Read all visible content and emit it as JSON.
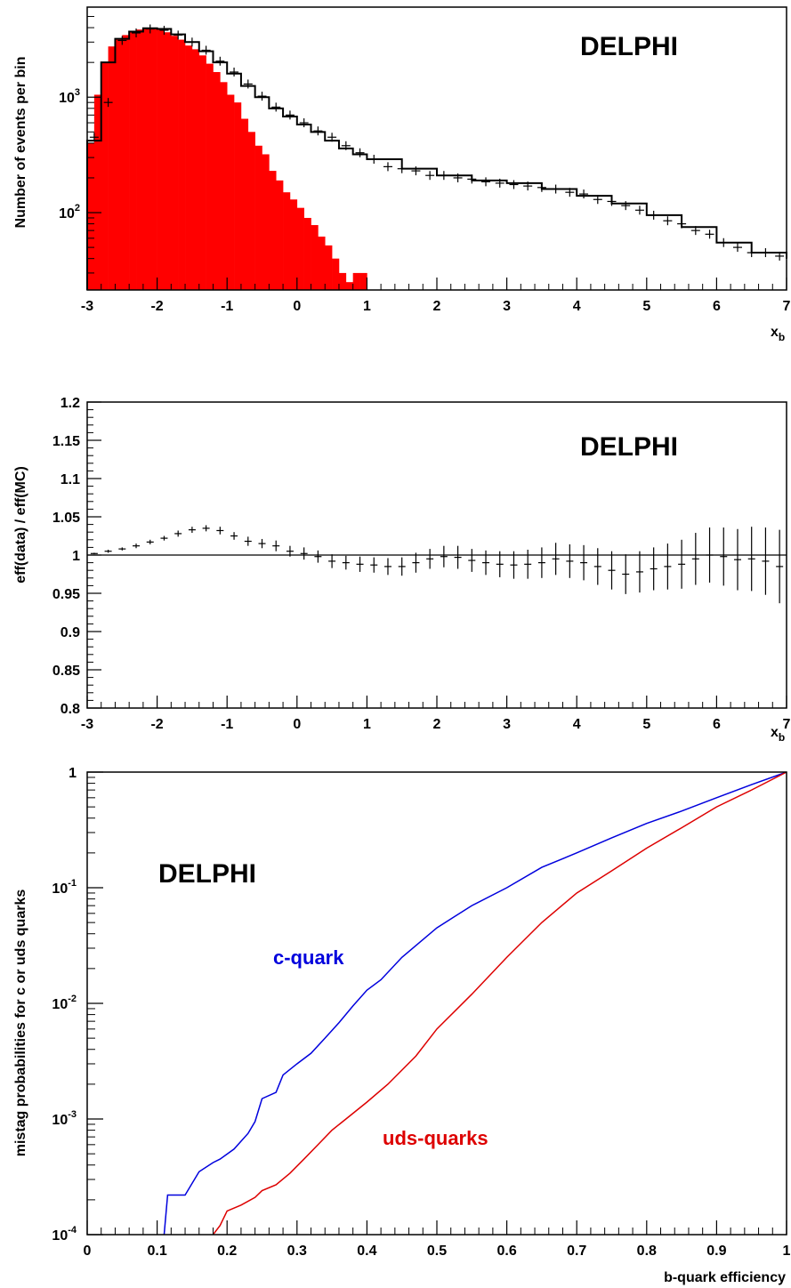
{
  "chart_data": [
    {
      "type": "histogram",
      "ylabel": "Number of events per bin",
      "xlabel": "x",
      "xlabel_sub": "b",
      "annotation": "DELPHI",
      "xlim": [
        -3,
        7
      ],
      "ylim_log10": [
        1.33,
        3.78
      ],
      "log_y": true,
      "x_ticks": [
        "-3",
        "-2",
        "-1",
        "0",
        "1",
        "2",
        "3",
        "4",
        "5",
        "6",
        "7"
      ],
      "y_ticks": [
        {
          "value": 1000,
          "base": "10",
          "exp": "3"
        },
        {
          "value": 100,
          "base": "10",
          "exp": "2"
        }
      ],
      "series": [
        {
          "style": "filled-histogram",
          "color": "#ff0000",
          "x": [
            -3.0,
            -2.9,
            -2.8,
            -2.7,
            -2.6,
            -2.5,
            -2.4,
            -2.3,
            -2.2,
            -2.1,
            -2.0,
            -1.9,
            -1.8,
            -1.7,
            -1.6,
            -1.5,
            -1.4,
            -1.3,
            -1.2,
            -1.1,
            -1.0,
            -0.9,
            -0.8,
            -0.7,
            -0.6,
            -0.5,
            -0.4,
            -0.3,
            -0.2,
            -0.1,
            0.0,
            0.1,
            0.2,
            0.3,
            0.4,
            0.5,
            0.6,
            0.7,
            0.8,
            0.9
          ],
          "values": [
            400,
            1050,
            2000,
            2750,
            3150,
            3450,
            3650,
            3850,
            3950,
            3950,
            3850,
            3650,
            3400,
            3150,
            2800,
            2600,
            2300,
            1950,
            1650,
            1350,
            1050,
            900,
            650,
            500,
            380,
            320,
            230,
            190,
            150,
            130,
            110,
            90,
            78,
            62,
            52,
            40,
            30,
            25,
            30,
            30
          ]
        },
        {
          "style": "step-histogram",
          "color": "#000000",
          "x": [
            -3.0,
            -2.8,
            -2.6,
            -2.4,
            -2.2,
            -2.0,
            -1.8,
            -1.6,
            -1.4,
            -1.2,
            -1.0,
            -0.8,
            -0.6,
            -0.4,
            -0.2,
            0.0,
            0.2,
            0.4,
            0.6,
            0.8,
            1.0,
            1.5,
            2.0,
            2.5,
            3.0,
            3.5,
            4.0,
            4.5,
            5.0,
            5.5,
            6.0,
            6.5,
            7.0
          ],
          "values": [
            420,
            2000,
            3200,
            3700,
            3950,
            3900,
            3500,
            3000,
            2500,
            2000,
            1600,
            1250,
            1000,
            800,
            680,
            580,
            500,
            420,
            360,
            320,
            290,
            240,
            210,
            190,
            180,
            160,
            140,
            120,
            95,
            75,
            55,
            45,
            40
          ]
        },
        {
          "style": "data-points",
          "color": "#000000",
          "x": [
            -3.0,
            -2.8,
            -2.6,
            -2.4,
            -2.2,
            -2.0,
            -1.8,
            -1.6,
            -1.4,
            -1.2,
            -1.0,
            -0.8,
            -0.6,
            -0.4,
            -0.2,
            0.0,
            0.2,
            0.4,
            0.6,
            0.8,
            1.0,
            1.2,
            1.4,
            1.6,
            1.8,
            2.0,
            2.2,
            2.4,
            2.6,
            2.8,
            3.0,
            3.2,
            3.4,
            3.6,
            3.8,
            4.0,
            4.2,
            4.4,
            4.6,
            4.8,
            5.0,
            5.2,
            5.4,
            5.6,
            5.8,
            6.0,
            6.2,
            6.4,
            6.6,
            6.8
          ],
          "values": [
            450,
            900,
            3100,
            3600,
            3900,
            3800,
            3450,
            3000,
            2550,
            2050,
            1650,
            1300,
            1020,
            820,
            700,
            600,
            510,
            450,
            380,
            330,
            290,
            250,
            240,
            230,
            210,
            210,
            200,
            195,
            185,
            180,
            175,
            170,
            165,
            160,
            150,
            145,
            130,
            125,
            115,
            105,
            95,
            85,
            80,
            70,
            65,
            55,
            50,
            45,
            45,
            42
          ]
        }
      ]
    },
    {
      "type": "scatter-errorbar",
      "ylabel": "eff(data) / eff(MC)",
      "xlabel": "x",
      "xlabel_sub": "b",
      "annotation": "DELPHI",
      "xlim": [
        -3,
        7
      ],
      "ylim": [
        0.8,
        1.2
      ],
      "x_ticks": [
        "-3",
        "-2",
        "-1",
        "0",
        "1",
        "2",
        "3",
        "4",
        "5",
        "6",
        "7"
      ],
      "y_ticks": [
        "0.8",
        "0.85",
        "0.9",
        "0.95",
        "1",
        "1.05",
        "1.1",
        "1.15",
        "1.2"
      ],
      "reference_line": 1.0,
      "series": [
        {
          "style": "points-with-errors",
          "color": "#000000",
          "x": [
            -2.9,
            -2.7,
            -2.5,
            -2.3,
            -2.1,
            -1.9,
            -1.7,
            -1.5,
            -1.3,
            -1.1,
            -0.9,
            -0.7,
            -0.5,
            -0.3,
            -0.1,
            0.1,
            0.3,
            0.5,
            0.7,
            0.9,
            1.1,
            1.3,
            1.5,
            1.7,
            1.9,
            2.1,
            2.3,
            2.5,
            2.7,
            2.9,
            3.1,
            3.3,
            3.5,
            3.7,
            3.9,
            4.1,
            4.3,
            4.5,
            4.7,
            4.9,
            5.1,
            5.3,
            5.5,
            5.7,
            5.9,
            6.1,
            6.3,
            6.5,
            6.7,
            6.9
          ],
          "values": [
            1.002,
            1.005,
            1.008,
            1.012,
            1.017,
            1.022,
            1.028,
            1.033,
            1.035,
            1.032,
            1.025,
            1.018,
            1.015,
            1.012,
            1.005,
            1.002,
            0.998,
            0.992,
            0.99,
            0.988,
            0.987,
            0.985,
            0.985,
            0.99,
            0.995,
            0.998,
            0.997,
            0.993,
            0.99,
            0.988,
            0.987,
            0.988,
            0.99,
            0.995,
            0.992,
            0.99,
            0.985,
            0.98,
            0.975,
            0.978,
            0.982,
            0.985,
            0.988,
            0.995,
            1.0,
            0.998,
            0.994,
            0.995,
            0.992,
            0.985
          ],
          "errors": [
            0.001,
            0.002,
            0.002,
            0.003,
            0.003,
            0.003,
            0.004,
            0.004,
            0.004,
            0.005,
            0.005,
            0.006,
            0.006,
            0.007,
            0.007,
            0.008,
            0.008,
            0.009,
            0.009,
            0.01,
            0.01,
            0.011,
            0.012,
            0.013,
            0.013,
            0.014,
            0.015,
            0.015,
            0.016,
            0.017,
            0.018,
            0.019,
            0.02,
            0.021,
            0.022,
            0.023,
            0.024,
            0.025,
            0.026,
            0.027,
            0.028,
            0.03,
            0.032,
            0.034,
            0.036,
            0.038,
            0.04,
            0.042,
            0.044,
            0.048
          ]
        }
      ]
    },
    {
      "type": "line",
      "ylabel": "mistag probabilities for c or uds quarks",
      "xlabel": "b-quark efficiency",
      "annotation": "DELPHI",
      "xlim": [
        0,
        1
      ],
      "ylim_log10": [
        -4,
        0
      ],
      "log_y": true,
      "x_ticks": [
        "0",
        "0.1",
        "0.2",
        "0.3",
        "0.4",
        "0.5",
        "0.6",
        "0.7",
        "0.8",
        "0.9",
        "1"
      ],
      "y_ticks": [
        {
          "log10": 0,
          "base": "1",
          "exp": ""
        },
        {
          "log10": -1,
          "base": "10",
          "exp": "-1"
        },
        {
          "log10": -2,
          "base": "10",
          "exp": "-2"
        },
        {
          "log10": -3,
          "base": "10",
          "exp": "-3"
        },
        {
          "log10": -4,
          "base": "10",
          "exp": "-4"
        }
      ],
      "series": [
        {
          "name": "c-quark",
          "color": "#0000dd",
          "x": [
            0.11,
            0.115,
            0.14,
            0.16,
            0.18,
            0.19,
            0.21,
            0.23,
            0.24,
            0.25,
            0.27,
            0.28,
            0.3,
            0.32,
            0.34,
            0.36,
            0.38,
            0.4,
            0.42,
            0.45,
            0.5,
            0.55,
            0.6,
            0.65,
            0.7,
            0.75,
            0.8,
            0.85,
            0.9,
            0.95,
            1.0
          ],
          "values": [
            0.0001,
            0.00022,
            0.00022,
            0.00035,
            0.00042,
            0.00045,
            0.00055,
            0.00075,
            0.00095,
            0.0015,
            0.0017,
            0.0024,
            0.003,
            0.0037,
            0.005,
            0.0068,
            0.0095,
            0.013,
            0.016,
            0.025,
            0.045,
            0.07,
            0.1,
            0.15,
            0.2,
            0.27,
            0.36,
            0.46,
            0.6,
            0.78,
            1.0
          ]
        },
        {
          "name": "uds-quarks",
          "color": "#dd0000",
          "x": [
            0.18,
            0.19,
            0.2,
            0.22,
            0.24,
            0.25,
            0.27,
            0.29,
            0.31,
            0.33,
            0.35,
            0.37,
            0.4,
            0.43,
            0.47,
            0.5,
            0.55,
            0.6,
            0.65,
            0.7,
            0.75,
            0.8,
            0.85,
            0.9,
            0.95,
            1.0
          ],
          "values": [
            0.0001,
            0.00012,
            0.00016,
            0.00018,
            0.00021,
            0.00024,
            0.00027,
            0.00034,
            0.00045,
            0.0006,
            0.0008,
            0.001,
            0.0014,
            0.002,
            0.0035,
            0.006,
            0.012,
            0.025,
            0.05,
            0.09,
            0.14,
            0.22,
            0.33,
            0.5,
            0.7,
            1.0
          ]
        }
      ]
    }
  ]
}
